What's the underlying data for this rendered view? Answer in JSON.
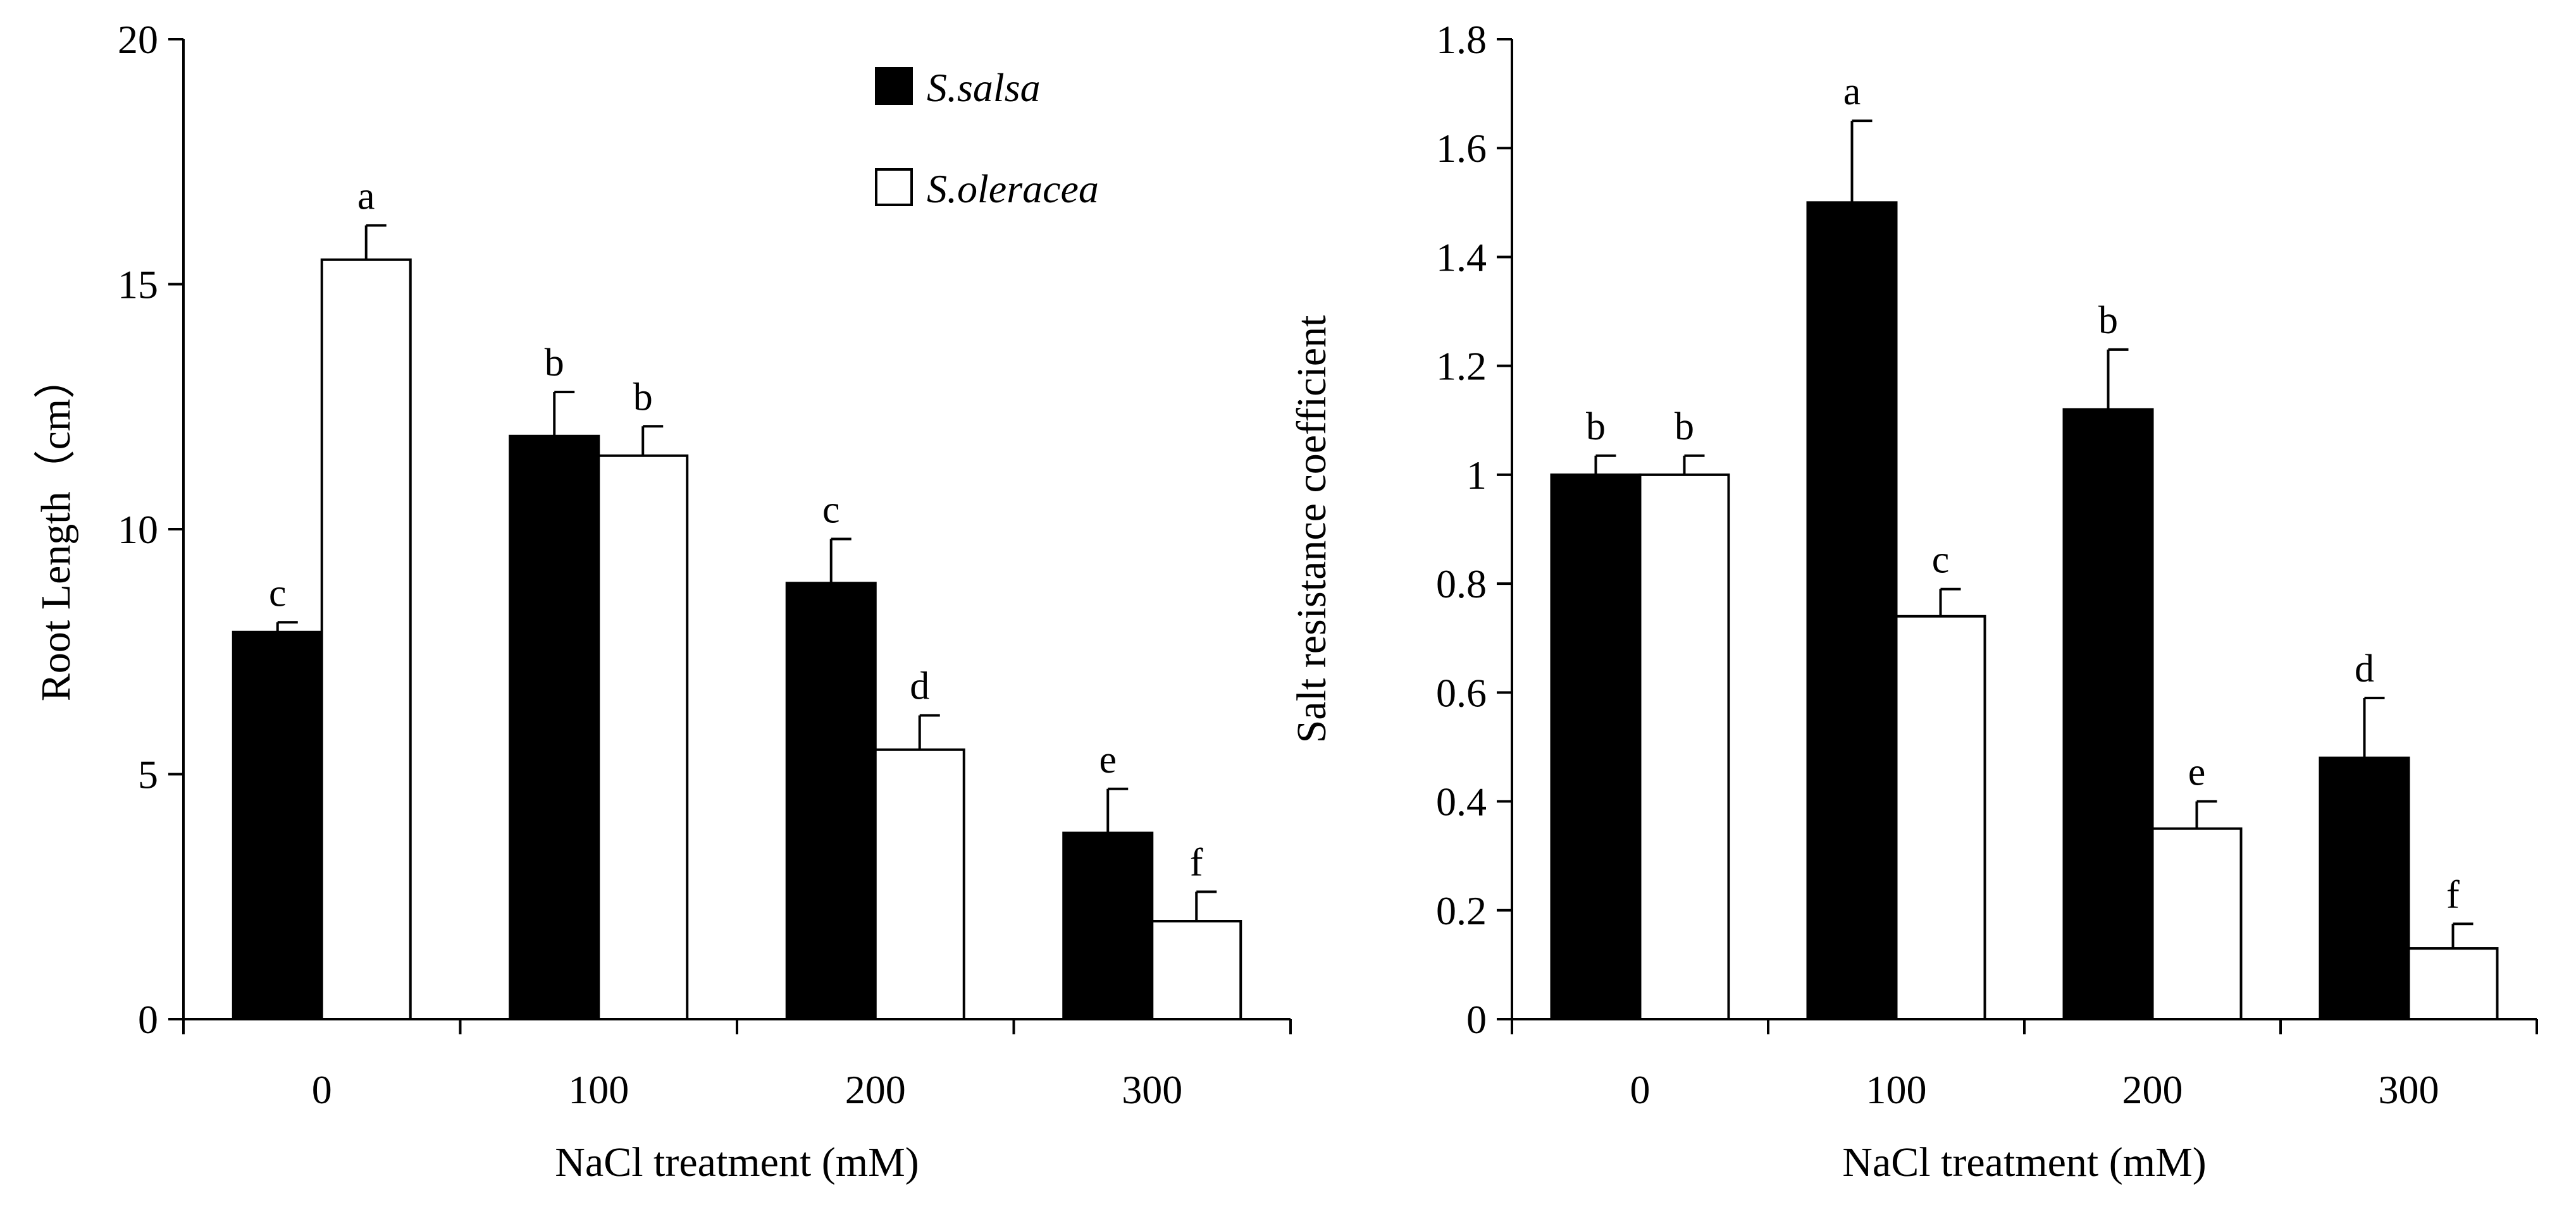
{
  "chart_data": [
    {
      "type": "bar",
      "ylabel": "Root Length（cm）",
      "xlabel": "NaCl treatment (mM)",
      "categories": [
        "0",
        "100",
        "200",
        "300"
      ],
      "ylim": [
        0,
        20
      ],
      "yticks": [
        0,
        5,
        10,
        15,
        20
      ],
      "ytick_labels": [
        "0",
        "5",
        "10",
        "15",
        "20"
      ],
      "grid": false,
      "legend": {
        "position": "top-right",
        "entries": [
          "S.salsa",
          "S.oleracea"
        ]
      },
      "series": [
        {
          "name": "S.salsa",
          "color": "#000000",
          "values": [
            7.9,
            11.9,
            8.9,
            3.8
          ],
          "errors": [
            0.2,
            0.9,
            0.9,
            0.9
          ],
          "labels": [
            "c",
            "b",
            "c",
            "e"
          ]
        },
        {
          "name": "S.oleracea",
          "color": "#ffffff",
          "values": [
            15.5,
            11.5,
            5.5,
            2.0
          ],
          "errors": [
            0.7,
            0.6,
            0.7,
            0.6
          ],
          "labels": [
            "a",
            "b",
            "d",
            "f"
          ]
        }
      ]
    },
    {
      "type": "bar",
      "ylabel": "Salt resistance coefficient",
      "xlabel": "NaCl treatment (mM)",
      "categories": [
        "0",
        "100",
        "200",
        "300"
      ],
      "ylim": [
        0,
        1.8
      ],
      "yticks": [
        0,
        0.2,
        0.4,
        0.6,
        0.8,
        1.0,
        1.2,
        1.4,
        1.6,
        1.8
      ],
      "ytick_labels": [
        "0",
        "0.2",
        "0.4",
        "0.6",
        "0.8",
        "1",
        "1.2",
        "1.4",
        "1.6",
        "1.8"
      ],
      "grid": false,
      "series": [
        {
          "name": "S.salsa",
          "color": "#000000",
          "values": [
            1.0,
            1.5,
            1.12,
            0.48
          ],
          "errors": [
            0.035,
            0.15,
            0.11,
            0.11
          ],
          "labels": [
            "b",
            "a",
            "b",
            "d"
          ]
        },
        {
          "name": "S.oleracea",
          "color": "#ffffff",
          "values": [
            1.0,
            0.74,
            0.35,
            0.13
          ],
          "errors": [
            0.035,
            0.05,
            0.05,
            0.045
          ],
          "labels": [
            "b",
            "c",
            "e",
            "f"
          ]
        }
      ]
    }
  ]
}
